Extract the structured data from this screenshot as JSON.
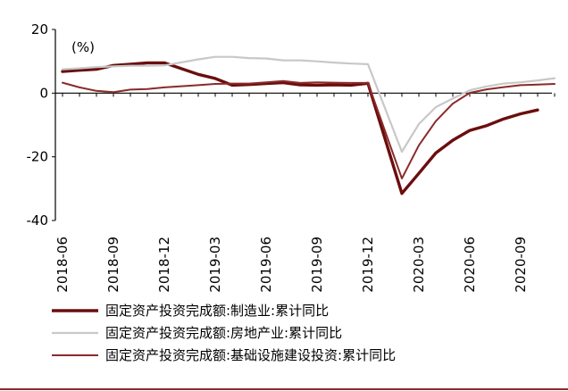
{
  "chart_data": {
    "type": "line",
    "title": "",
    "xlabel": "",
    "ylabel": "",
    "unit_label": "(%)",
    "ylim": [
      -40,
      20
    ],
    "yticks": [
      20,
      0,
      -20,
      -40
    ],
    "x": [
      "2018-06",
      "2018-07",
      "2018-08",
      "2018-09",
      "2018-10",
      "2018-11",
      "2018-12",
      "2019-01",
      "2019-02",
      "2019-03",
      "2019-04",
      "2019-05",
      "2019-06",
      "2019-07",
      "2019-08",
      "2019-09",
      "2019-10",
      "2019-11",
      "2019-12",
      "2020-01",
      "2020-02",
      "2020-03",
      "2020-04",
      "2020-05",
      "2020-06",
      "2020-07",
      "2020-08",
      "2020-09",
      "2020-10",
      "2020-11"
    ],
    "xticks": [
      "2018-06",
      "2018-09",
      "2018-12",
      "2019-03",
      "2019-06",
      "2019-09",
      "2019-12",
      "2020-03",
      "2020-06",
      "2020-09"
    ],
    "legend_position": "bottom",
    "grid": false,
    "series": [
      {
        "name": "固定资产投资完成额:制造业:累计同比",
        "color": "#6b0e0e",
        "width": 3.4,
        "values": [
          6.8,
          7.2,
          7.5,
          8.7,
          9.1,
          9.5,
          9.5,
          null,
          5.9,
          4.6,
          2.5,
          2.7,
          3.0,
          3.3,
          2.6,
          2.5,
          2.6,
          2.5,
          3.1,
          null,
          -31.5,
          -25.2,
          -18.8,
          -14.8,
          -11.7,
          -10.2,
          -8.1,
          -6.5,
          -5.3,
          null
        ]
      },
      {
        "name": "固定资产投资完成额:房地产业:累计同比",
        "color": "#c8c8c8",
        "width": 2.2,
        "values": [
          7.5,
          7.8,
          8.2,
          8.4,
          8.6,
          8.6,
          8.7,
          null,
          10.6,
          11.4,
          11.4,
          11.0,
          10.9,
          10.3,
          10.3,
          10.0,
          9.6,
          9.3,
          9.1,
          null,
          -18.4,
          -9.7,
          -4.4,
          -1.7,
          0.9,
          2.1,
          3.0,
          3.4,
          4.0,
          4.7
        ]
      },
      {
        "name": "固定资产投资完成额:基础设施建设投资:累计同比",
        "color": "#8b2a2a",
        "width": 2.0,
        "values": [
          3.3,
          1.8,
          0.7,
          0.3,
          1.1,
          1.3,
          1.8,
          null,
          2.5,
          2.9,
          3.0,
          3.0,
          3.4,
          3.8,
          3.2,
          3.4,
          3.3,
          3.2,
          3.2,
          null,
          -26.8,
          -16.4,
          -8.8,
          -3.3,
          0.1,
          1.2,
          1.9,
          2.5,
          2.7,
          2.9
        ]
      }
    ]
  }
}
